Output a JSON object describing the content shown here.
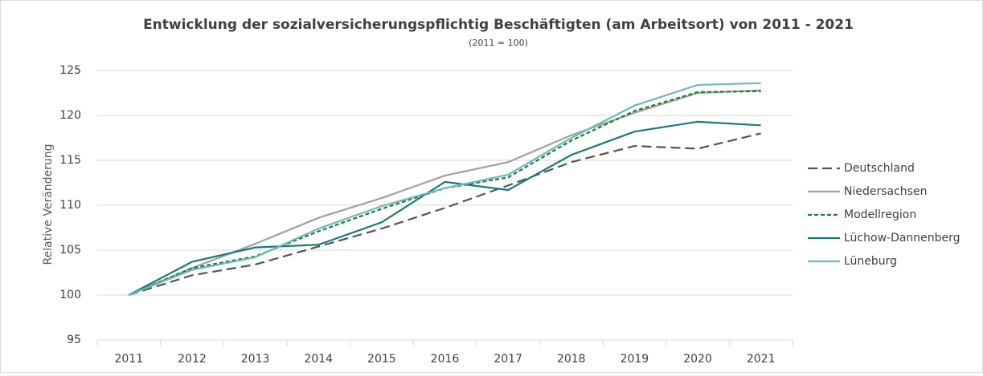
{
  "chart_data": {
    "type": "line",
    "title": "Entwicklung der sozialversicherungspflichtig Beschäftigten (am Arbeitsort) von 2011 - 2021",
    "subtitle": "(2011 = 100)",
    "y_label": "Relative Veränderung",
    "categories": [
      "2011",
      "2012",
      "2013",
      "2014",
      "2015",
      "2016",
      "2017",
      "2018",
      "2019",
      "2020",
      "2021"
    ],
    "series": [
      {
        "name": "Deutschland",
        "color": "#555555",
        "style": "dashed",
        "values": [
          100,
          102.2,
          103.4,
          105.4,
          107.4,
          109.7,
          112.2,
          114.8,
          116.6,
          116.3,
          118.0
        ]
      },
      {
        "name": "Niedersachsen",
        "color": "#a0a0a0",
        "style": "solid",
        "values": [
          100,
          103.0,
          105.7,
          108.6,
          110.8,
          113.3,
          114.8,
          117.8,
          120.3,
          122.5,
          122.8
        ]
      },
      {
        "name": "Modellregion",
        "color": "#1e7b3c",
        "style": "dotted",
        "values": [
          100,
          103.0,
          104.3,
          107.1,
          109.6,
          111.9,
          113.1,
          117.2,
          120.5,
          122.6,
          122.7
        ]
      },
      {
        "name": "Lüchow-Dannenberg",
        "color": "#1a7a7a",
        "style": "solid",
        "values": [
          100,
          103.7,
          105.3,
          105.6,
          108.1,
          112.6,
          111.7,
          115.6,
          118.2,
          119.3,
          118.9
        ]
      },
      {
        "name": "Lüneburg",
        "color": "#6bb8bf",
        "style": "solid",
        "values": [
          100,
          102.8,
          104.2,
          107.4,
          109.9,
          111.9,
          113.4,
          117.5,
          121.1,
          123.4,
          123.6
        ]
      }
    ],
    "ylim": [
      95,
      125
    ],
    "yticks": [
      95,
      100,
      105,
      110,
      115,
      120,
      125
    ],
    "grid": true,
    "legend": "right"
  }
}
